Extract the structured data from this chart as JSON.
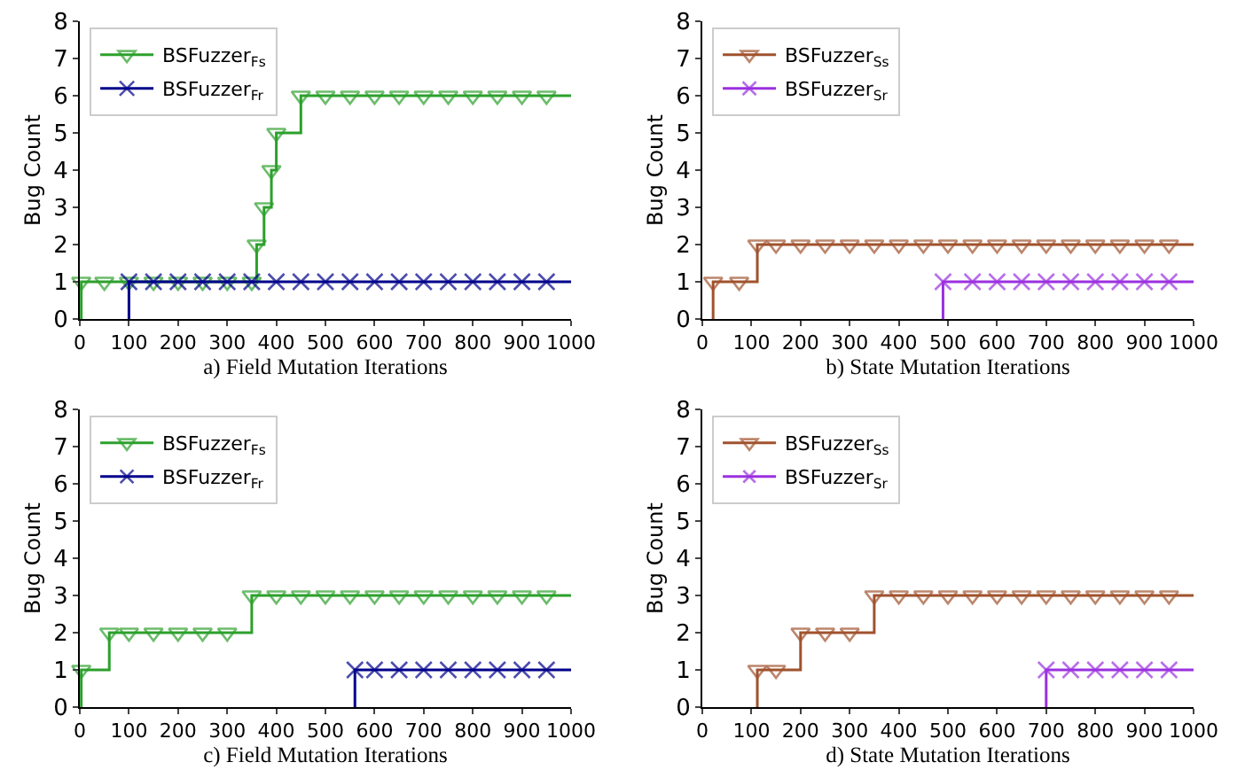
{
  "chart_data": [
    {
      "type": "step",
      "xlabel": "a) Field Mutation Iterations",
      "ylabel": "Bug Count",
      "xlim": [
        0,
        1000
      ],
      "xticks": [
        0,
        100,
        200,
        300,
        400,
        500,
        600,
        700,
        800,
        900,
        1000
      ],
      "ylim": [
        0,
        8
      ],
      "yticks": [
        0,
        1,
        2,
        3,
        4,
        5,
        6,
        7,
        8
      ],
      "grid": false,
      "legend": "top left",
      "series": [
        {
          "name": "BSFuzzer$_{Fs}$",
          "color": "#2ca02c",
          "marker": "triangle",
          "x": [
            3,
            3,
            50,
            100,
            150,
            200,
            250,
            300,
            350,
            360,
            375,
            390,
            400,
            450,
            500,
            550,
            600,
            650,
            700,
            750,
            800,
            850,
            900,
            950,
            1000
          ],
          "values": [
            0,
            1,
            1,
            1,
            1,
            1,
            1,
            1,
            1,
            2,
            3,
            4,
            5,
            6,
            6,
            6,
            6,
            6,
            6,
            6,
            6,
            6,
            6,
            6,
            6
          ]
        },
        {
          "name": "BSFuzzer$_{Fr}$",
          "color": "#00008b",
          "marker": "cross",
          "x": [
            100,
            100,
            150,
            200,
            250,
            300,
            350,
            400,
            450,
            500,
            550,
            600,
            650,
            700,
            750,
            800,
            850,
            900,
            950,
            1000
          ],
          "values": [
            0,
            1,
            1,
            1,
            1,
            1,
            1,
            1,
            1,
            1,
            1,
            1,
            1,
            1,
            1,
            1,
            1,
            1,
            1,
            1
          ]
        }
      ]
    },
    {
      "type": "step",
      "xlabel": "b) State Mutation Iterations",
      "ylabel": "Bug Count",
      "xlim": [
        0,
        1000
      ],
      "xticks": [
        0,
        100,
        200,
        300,
        400,
        500,
        600,
        700,
        800,
        900,
        1000
      ],
      "ylim": [
        0,
        8
      ],
      "yticks": [
        0,
        1,
        2,
        3,
        4,
        5,
        6,
        7,
        8
      ],
      "grid": false,
      "legend": "top left",
      "series": [
        {
          "name": "BSFuzzer$_{Ss}$",
          "color": "#a0522d",
          "marker": "triangle",
          "x": [
            22,
            22,
            75,
            112,
            150,
            200,
            250,
            300,
            350,
            400,
            450,
            500,
            550,
            600,
            650,
            700,
            750,
            800,
            850,
            900,
            950,
            1000
          ],
          "values": [
            0,
            1,
            1,
            2,
            2,
            2,
            2,
            2,
            2,
            2,
            2,
            2,
            2,
            2,
            2,
            2,
            2,
            2,
            2,
            2,
            2,
            2
          ]
        },
        {
          "name": "BSFuzzer$_{Sr}$",
          "color": "#9b30e0",
          "marker": "cross",
          "x": [
            490,
            490,
            550,
            600,
            650,
            700,
            750,
            800,
            850,
            900,
            950,
            1000
          ],
          "values": [
            0,
            1,
            1,
            1,
            1,
            1,
            1,
            1,
            1,
            1,
            1,
            1
          ]
        }
      ]
    },
    {
      "type": "step",
      "xlabel": "c) Field Mutation Iterations",
      "ylabel": "Bug Count",
      "xlim": [
        0,
        1000
      ],
      "xticks": [
        0,
        100,
        200,
        300,
        400,
        500,
        600,
        700,
        800,
        900,
        1000
      ],
      "ylim": [
        0,
        8
      ],
      "yticks": [
        0,
        1,
        2,
        3,
        4,
        5,
        6,
        7,
        8
      ],
      "grid": false,
      "legend": "top left",
      "series": [
        {
          "name": "BSFuzzer$_{Fs}$",
          "color": "#2ca02c",
          "marker": "triangle",
          "x": [
            3,
            3,
            60,
            100,
            150,
            200,
            250,
            300,
            350,
            400,
            450,
            500,
            550,
            600,
            650,
            700,
            750,
            800,
            850,
            900,
            950,
            1000
          ],
          "values": [
            0,
            1,
            2,
            2,
            2,
            2,
            2,
            2,
            3,
            3,
            3,
            3,
            3,
            3,
            3,
            3,
            3,
            3,
            3,
            3,
            3,
            3
          ]
        },
        {
          "name": "BSFuzzer$_{Fr}$",
          "color": "#00008b",
          "marker": "cross",
          "x": [
            560,
            560,
            600,
            650,
            700,
            750,
            800,
            850,
            900,
            950,
            1000
          ],
          "values": [
            0,
            1,
            1,
            1,
            1,
            1,
            1,
            1,
            1,
            1,
            1
          ]
        }
      ]
    },
    {
      "type": "step",
      "xlabel": "d) State Mutation Iterations",
      "ylabel": "Bug Count",
      "xlim": [
        0,
        1000
      ],
      "xticks": [
        0,
        100,
        200,
        300,
        400,
        500,
        600,
        700,
        800,
        900,
        1000
      ],
      "ylim": [
        0,
        8
      ],
      "yticks": [
        0,
        1,
        2,
        3,
        4,
        5,
        6,
        7,
        8
      ],
      "grid": false,
      "legend": "top left",
      "series": [
        {
          "name": "BSFuzzer$_{Ss}$",
          "color": "#a0522d",
          "marker": "triangle",
          "x": [
            112,
            112,
            150,
            200,
            250,
            300,
            350,
            400,
            450,
            500,
            550,
            600,
            650,
            700,
            750,
            800,
            850,
            900,
            950,
            1000
          ],
          "values": [
            0,
            1,
            1,
            2,
            2,
            2,
            3,
            3,
            3,
            3,
            3,
            3,
            3,
            3,
            3,
            3,
            3,
            3,
            3,
            3
          ]
        },
        {
          "name": "BSFuzzer$_{Sr}$",
          "color": "#9b30e0",
          "marker": "cross",
          "x": [
            700,
            700,
            750,
            800,
            850,
            900,
            950,
            1000
          ],
          "values": [
            0,
            1,
            1,
            1,
            1,
            1,
            1,
            1
          ]
        }
      ]
    }
  ]
}
